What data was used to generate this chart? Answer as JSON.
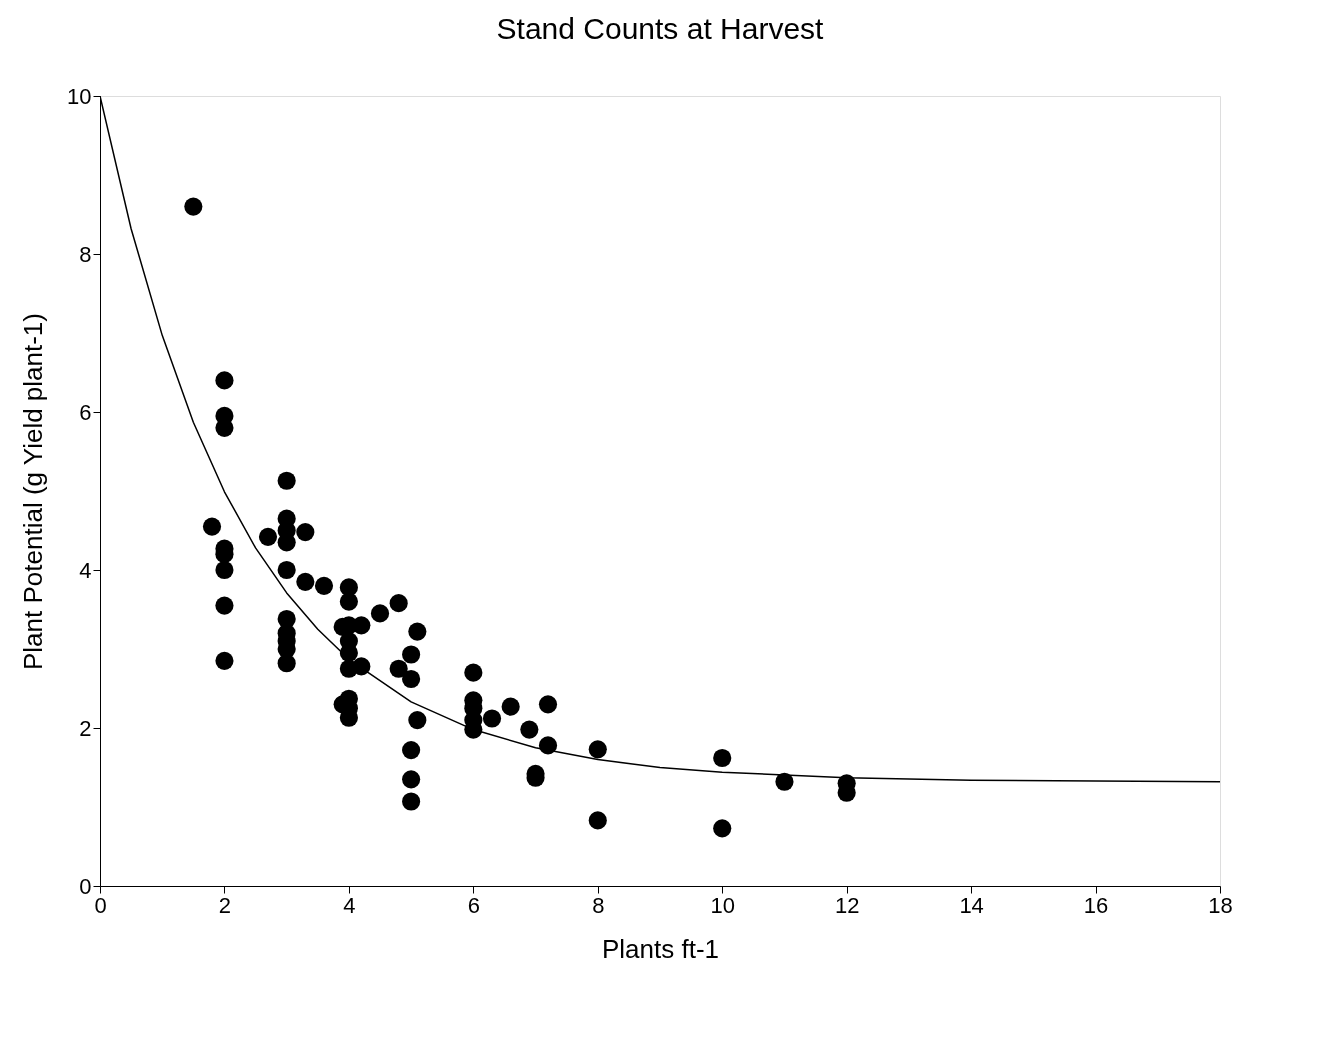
{
  "chart_data": {
    "type": "scatter",
    "title": "Stand Counts at Harvest",
    "xlabel": "Plants ft-1",
    "ylabel": "Plant Potential (g Yield plant-1)",
    "xlim": [
      0,
      18
    ],
    "xticks": [
      0,
      2,
      4,
      6,
      8,
      10,
      12,
      14,
      16,
      18
    ],
    "ylim": [
      0,
      10
    ],
    "yticks": [
      0,
      2,
      4,
      6,
      8,
      10
    ],
    "grid": false,
    "series": [
      {
        "color": "#000000",
        "marker": "circle",
        "x": [
          1.5,
          1.8,
          2,
          2,
          2,
          2,
          2,
          2,
          2,
          2,
          2.7,
          3,
          3,
          3,
          3,
          3,
          3,
          3,
          3,
          3,
          3,
          3.3,
          3.3,
          3.6,
          3.9,
          3.9,
          4,
          4,
          4,
          4,
          4,
          4,
          4,
          4,
          4,
          4.2,
          4.2,
          4.5,
          4.8,
          4.8,
          5,
          5,
          5,
          5,
          5,
          5.1,
          5.1,
          6,
          6,
          6,
          6,
          6,
          6.3,
          6.6,
          6.9,
          7,
          7,
          7.2,
          7.2,
          8,
          8,
          10,
          10,
          11,
          12,
          12
        ],
        "values": [
          8.6,
          4.55,
          6.4,
          5.95,
          5.8,
          4.27,
          4.2,
          4.0,
          3.55,
          2.85,
          4.42,
          5.13,
          4.65,
          4.5,
          4.35,
          4.0,
          3.38,
          3.2,
          3.1,
          3.0,
          2.82,
          4.48,
          3.85,
          3.8,
          3.28,
          2.3,
          3.78,
          3.6,
          3.3,
          3.1,
          2.95,
          2.75,
          2.37,
          2.25,
          2.13,
          3.3,
          2.78,
          3.45,
          3.58,
          2.75,
          2.93,
          2.62,
          1.72,
          1.35,
          1.07,
          3.22,
          2.1,
          2.7,
          2.35,
          2.25,
          2.1,
          1.98,
          2.12,
          2.27,
          1.98,
          1.42,
          1.37,
          2.3,
          1.78,
          1.73,
          0.83,
          1.62,
          0.73,
          1.32,
          1.3,
          1.18
        ]
      },
      {
        "type": "line",
        "color": "#000000",
        "line_style": "solid",
        "x": [
          0,
          0.5,
          1,
          1.5,
          2,
          2.5,
          3,
          3.5,
          4,
          5,
          6,
          7,
          8,
          9,
          10,
          12,
          14,
          16,
          18
        ],
        "values": [
          10.0,
          8.32,
          6.97,
          5.87,
          4.99,
          4.28,
          3.71,
          3.25,
          2.87,
          2.33,
          1.98,
          1.75,
          1.6,
          1.5,
          1.44,
          1.37,
          1.34,
          1.33,
          1.32
        ]
      }
    ]
  }
}
